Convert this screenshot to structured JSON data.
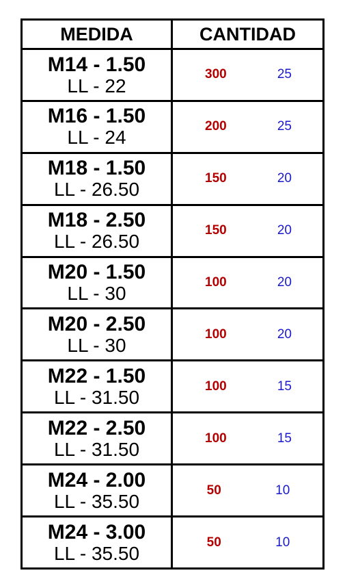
{
  "header": {
    "medida": "MEDIDA",
    "cantidad": "CANTIDAD"
  },
  "colors": {
    "first_quantity": "#b30000",
    "second_quantity": "#1a1acc"
  },
  "rows": [
    {
      "size": "M14 - 1.50",
      "ll": "LL - 22",
      "q1": "300",
      "q2": "25"
    },
    {
      "size": "M16 - 1.50",
      "ll": "LL - 24",
      "q1": "200",
      "q2": "25"
    },
    {
      "size": "M18 - 1.50",
      "ll": "LL - 26.50",
      "q1": "150",
      "q2": "20"
    },
    {
      "size": "M18 - 2.50",
      "ll": "LL - 26.50",
      "q1": "150",
      "q2": "20"
    },
    {
      "size": "M20 - 1.50",
      "ll": "LL - 30",
      "q1": "100",
      "q2": "20"
    },
    {
      "size": "M20 - 2.50",
      "ll": "LL - 30",
      "q1": "100",
      "q2": "20"
    },
    {
      "size": "M22 - 1.50",
      "ll": "LL - 31.50",
      "q1": "100",
      "q2": "15"
    },
    {
      "size": "M22 - 2.50",
      "ll": "LL - 31.50",
      "q1": "100",
      "q2": "15"
    },
    {
      "size": "M24 - 2.00",
      "ll": "LL - 35.50",
      "q1": "50",
      "q2": "10"
    },
    {
      "size": "M24 - 3.00",
      "ll": "LL - 35.50",
      "q1": "50",
      "q2": "10"
    }
  ]
}
